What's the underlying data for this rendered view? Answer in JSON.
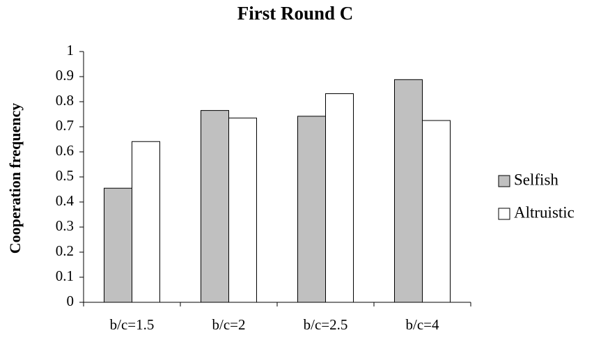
{
  "chart_data": {
    "type": "bar",
    "title": "First Round C",
    "y_label": "Cooperation frequency",
    "categories": [
      "b/c=1.5",
      "b/c=2",
      "b/c=2.5",
      "b/c=4"
    ],
    "series": [
      {
        "name": "Selfish",
        "color": "#c0c0c0",
        "values": [
          0.455,
          0.765,
          0.742,
          0.888
        ]
      },
      {
        "name": "Altruistic",
        "color": "#ffffff",
        "values": [
          0.641,
          0.735,
          0.832,
          0.725
        ]
      }
    ],
    "ylim": [
      0,
      1
    ],
    "yticks": [
      0,
      0.1,
      0.2,
      0.3,
      0.4,
      0.5,
      0.6,
      0.7,
      0.8,
      0.9,
      1
    ],
    "grid": false,
    "legend": "right"
  }
}
